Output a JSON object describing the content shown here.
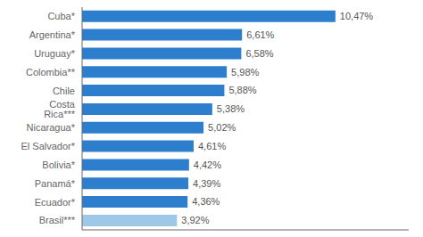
{
  "chart_data": {
    "type": "bar",
    "orientation": "horizontal",
    "categories": [
      "Cuba*",
      "Argentina*",
      "Uruguay*",
      "Colombia**",
      "Chile",
      "Costa Rica***",
      "Nicaragua*",
      "El Salvador*",
      "Bolivia*",
      "Panamá*",
      "Ecuador*",
      "Brasil***"
    ],
    "values": [
      10.47,
      6.61,
      6.58,
      5.98,
      5.88,
      5.38,
      5.02,
      4.61,
      4.42,
      4.39,
      4.36,
      3.92
    ],
    "value_labels": [
      "10,47%",
      "6,61%",
      "6,58%",
      "5,98%",
      "5,88%",
      "5,38%",
      "5,02%",
      "4,61%",
      "4,42%",
      "4,39%",
      "4,36%",
      "3,92%"
    ],
    "colors": [
      "#2e7ece",
      "#2e7ece",
      "#2e7ece",
      "#2e7ece",
      "#2e7ece",
      "#2e7ece",
      "#2e7ece",
      "#2e7ece",
      "#2e7ece",
      "#2e7ece",
      "#2e7ece",
      "#9ec8e8"
    ],
    "xlim": [
      0,
      13.5
    ],
    "grid": false,
    "data_labels": true,
    "tick_labels": "y"
  }
}
